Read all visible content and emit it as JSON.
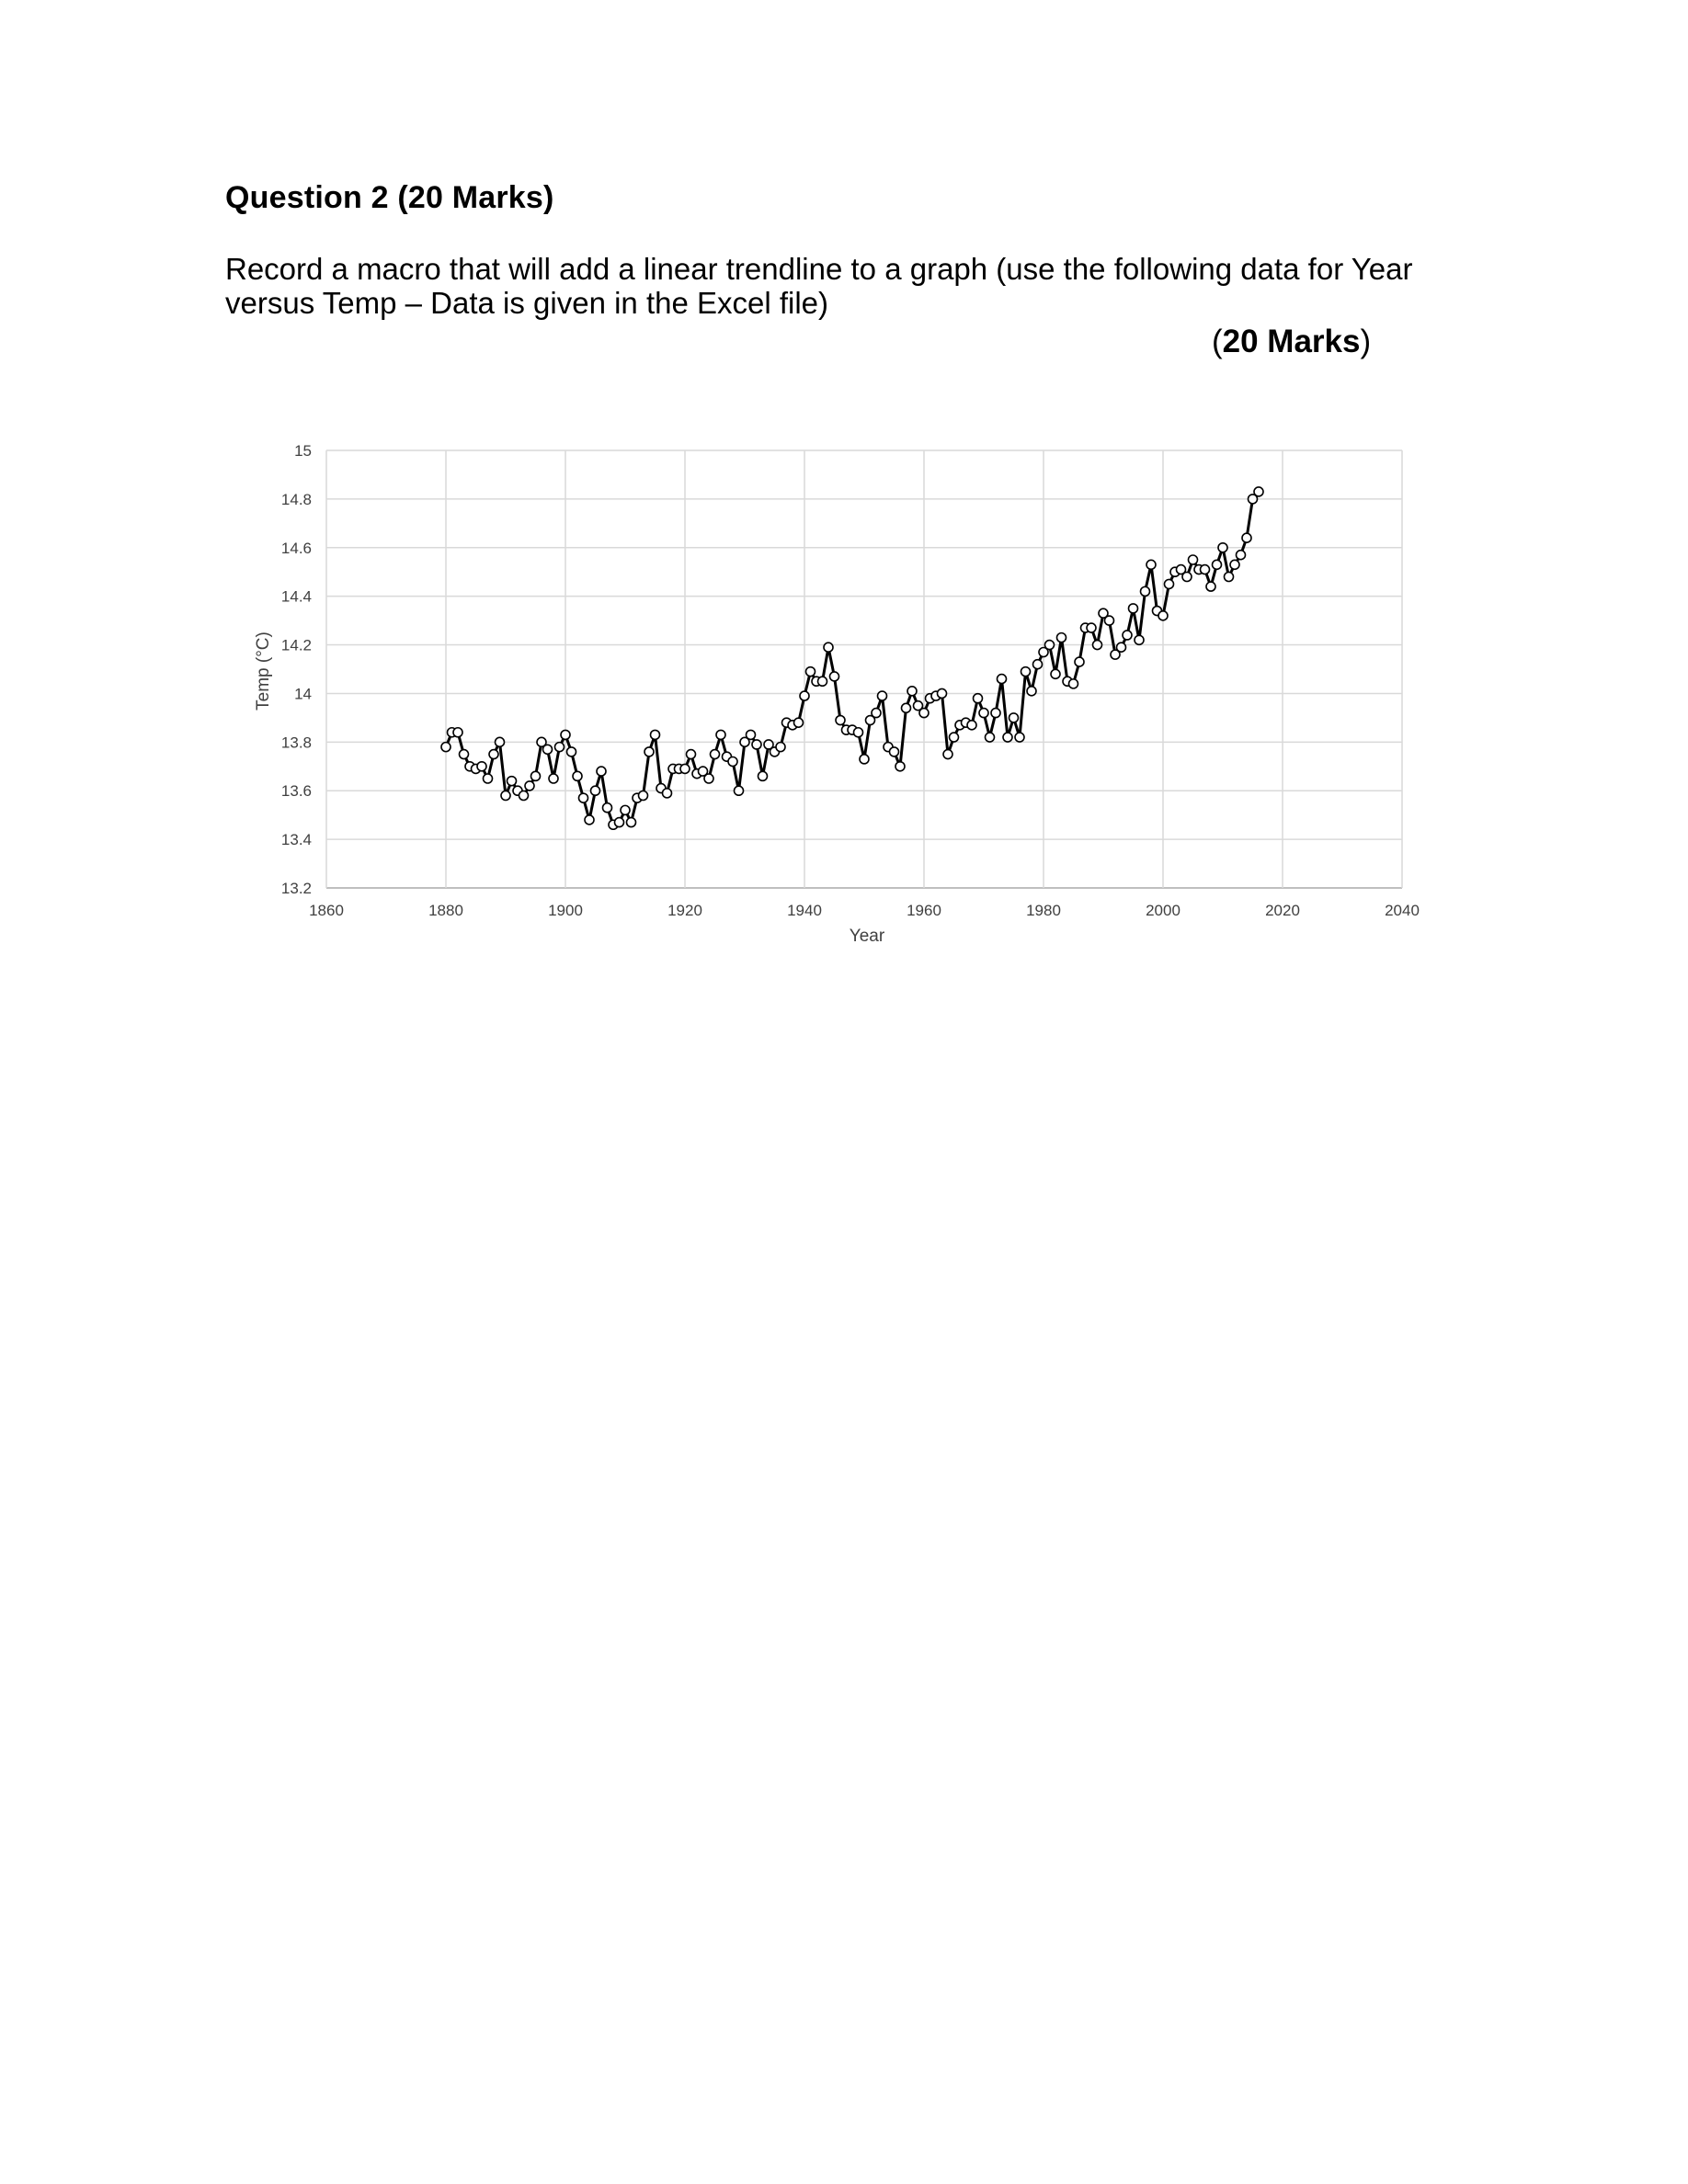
{
  "question": {
    "title": "Question 2 (20 Marks)",
    "body": "Record a macro that will add a linear trendline to a graph (use the following data for Year versus Temp – Data is given in the Excel file)",
    "marks_open": "(",
    "marks_value": "20 Marks",
    "marks_close": ")"
  },
  "chart_data": {
    "type": "line",
    "title": "",
    "xlabel": "Year",
    "ylabel": "Temp (°C)",
    "xlim": [
      1860,
      2040
    ],
    "ylim": [
      13.2,
      15
    ],
    "x_ticks": [
      "1860",
      "1880",
      "1900",
      "1920",
      "1940",
      "1960",
      "1980",
      "2000",
      "2020",
      "2040"
    ],
    "y_ticks": [
      "13.2",
      "13.4",
      "13.6",
      "13.8",
      "14",
      "14.2",
      "14.4",
      "14.6",
      "14.8",
      "15"
    ],
    "grid": true,
    "legend": "none",
    "marker": "hollow circle",
    "line_color": "#000000",
    "series": [
      {
        "x": [
          1880,
          1881,
          1882,
          1883,
          1884,
          1885,
          1886,
          1887,
          1888,
          1889,
          1890,
          1891,
          1892,
          1893,
          1894,
          1895,
          1896,
          1897,
          1898,
          1899,
          1900,
          1901,
          1902,
          1903,
          1904,
          1905,
          1906,
          1907,
          1908,
          1909,
          1910,
          1911,
          1912,
          1913,
          1914,
          1915,
          1916,
          1917,
          1918,
          1919,
          1920,
          1921,
          1922,
          1923,
          1924,
          1925,
          1926,
          1927,
          1928,
          1929,
          1930,
          1931,
          1932,
          1933,
          1934,
          1935,
          1936,
          1937,
          1938,
          1939,
          1940,
          1941,
          1942,
          1943,
          1944,
          1945,
          1946,
          1947,
          1948,
          1949,
          1950,
          1951,
          1952,
          1953,
          1954,
          1955,
          1956,
          1957,
          1958,
          1959,
          1960,
          1961,
          1962,
          1963,
          1964,
          1965,
          1966,
          1967,
          1968,
          1969,
          1970,
          1971,
          1972,
          1973,
          1974,
          1975,
          1976,
          1977,
          1978,
          1979,
          1980,
          1981,
          1982,
          1983,
          1984,
          1985,
          1986,
          1987,
          1988,
          1989,
          1990,
          1991,
          1992,
          1993,
          1994,
          1995,
          1996,
          1997,
          1998,
          1999,
          2000,
          2001,
          2002,
          2003,
          2004,
          2005,
          2006,
          2007,
          2008,
          2009,
          2010,
          2011,
          2012,
          2013,
          2014,
          2015,
          2016
        ],
        "y": [
          13.78,
          13.84,
          13.84,
          13.75,
          13.7,
          13.69,
          13.7,
          13.65,
          13.75,
          13.8,
          13.58,
          13.64,
          13.6,
          13.58,
          13.62,
          13.66,
          13.8,
          13.77,
          13.65,
          13.78,
          13.83,
          13.76,
          13.66,
          13.57,
          13.48,
          13.6,
          13.68,
          13.53,
          13.46,
          13.47,
          13.52,
          13.47,
          13.57,
          13.58,
          13.76,
          13.83,
          13.61,
          13.59,
          13.69,
          13.69,
          13.69,
          13.75,
          13.67,
          13.68,
          13.65,
          13.75,
          13.83,
          13.74,
          13.72,
          13.6,
          13.8,
          13.83,
          13.79,
          13.66,
          13.79,
          13.76,
          13.78,
          13.88,
          13.87,
          13.88,
          13.99,
          14.09,
          14.05,
          14.05,
          14.19,
          14.07,
          13.89,
          13.85,
          13.85,
          13.84,
          13.73,
          13.89,
          13.92,
          13.99,
          13.78,
          13.76,
          13.7,
          13.94,
          14.01,
          13.95,
          13.92,
          13.98,
          13.99,
          14.0,
          13.75,
          13.82,
          13.87,
          13.88,
          13.87,
          13.98,
          13.92,
          13.82,
          13.92,
          14.06,
          13.82,
          13.9,
          13.82,
          14.09,
          14.01,
          14.12,
          14.17,
          14.2,
          14.08,
          14.23,
          14.05,
          14.04,
          14.13,
          14.27,
          14.27,
          14.2,
          14.33,
          14.3,
          14.16,
          14.19,
          14.24,
          14.35,
          14.22,
          14.42,
          14.53,
          14.34,
          14.32,
          14.45,
          14.5,
          14.51,
          14.48,
          14.55,
          14.51,
          14.51,
          14.44,
          14.53,
          14.6,
          14.48,
          14.53,
          14.57,
          14.64,
          14.8,
          14.83
        ]
      }
    ]
  }
}
